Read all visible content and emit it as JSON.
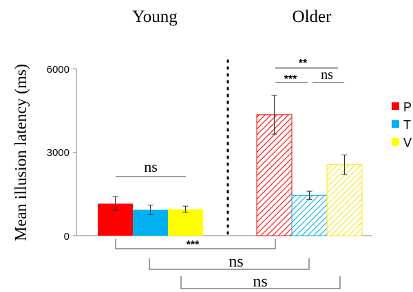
{
  "chart_data": {
    "type": "bar",
    "ylabel": "Mean illusion latency (ms)",
    "ylim": [
      0,
      6000
    ],
    "yticks": [
      "0",
      "3000",
      "6000"
    ],
    "groups": [
      "Young",
      "Older"
    ],
    "legend": {
      "placement": "right",
      "entries": [
        {
          "name": "P",
          "color": "#ff0000"
        },
        {
          "name": "T",
          "color": "#00b0f0"
        },
        {
          "name": "V",
          "color": "#ffff00"
        }
      ]
    },
    "series": [
      {
        "name": "P",
        "color": "#ff0000",
        "values": [
          1150,
          4350
        ],
        "errors": [
          250,
          700
        ]
      },
      {
        "name": "T",
        "color": "#00b0f0",
        "values": [
          930,
          1450
        ],
        "errors": [
          170,
          150
        ]
      },
      {
        "name": "V",
        "color": "#ffff00",
        "values": [
          950,
          2550
        ],
        "errors": [
          110,
          350
        ]
      }
    ],
    "group_fill": [
      "solid",
      "hatched"
    ],
    "annotations": {
      "young_ns": "ns",
      "older_pt": "***",
      "older_tv": "ns",
      "older_pv": "**",
      "cross_p": "***",
      "cross_t": "ns",
      "cross_v": "ns"
    }
  }
}
